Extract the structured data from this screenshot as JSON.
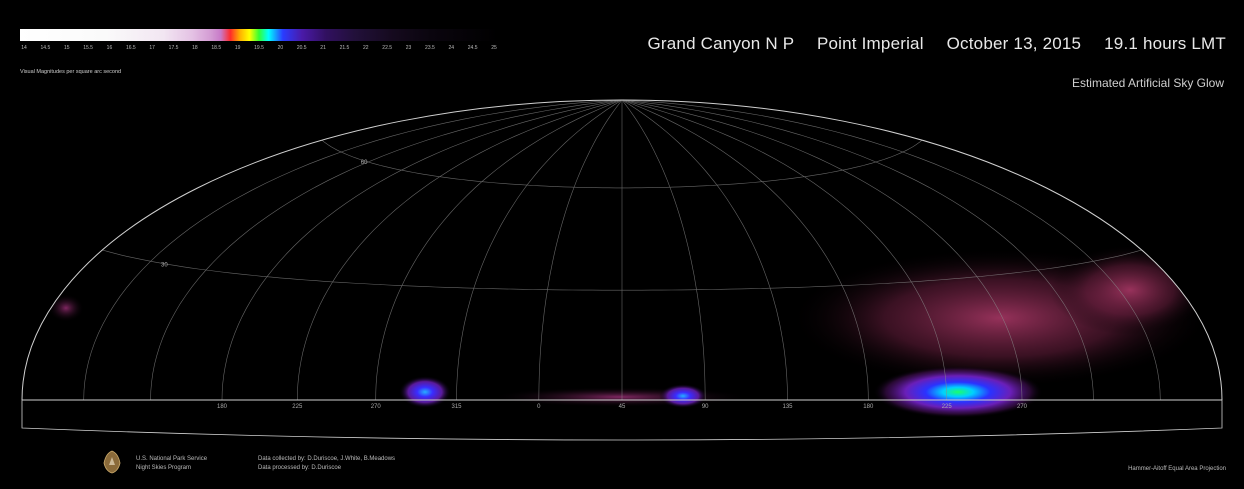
{
  "header": {
    "location": "Grand Canyon N P",
    "site": "Point Imperial",
    "date": "October 13, 2015",
    "time": "19.1 hours LMT",
    "subtitle": "Estimated Artificial Sky Glow"
  },
  "scale": {
    "ticks": [
      "14",
      "14.5",
      "15",
      "15.5",
      "16",
      "16.5",
      "17",
      "17.5",
      "18",
      "18.5",
      "19",
      "19.5",
      "20",
      "20.5",
      "21",
      "21.5",
      "22",
      "22.5",
      "23",
      "23.5",
      "24",
      "24.5",
      "25"
    ],
    "label": "Visual Magnitudes per square arc second"
  },
  "plot": {
    "altitude_labels": [
      "60",
      "30"
    ],
    "azimuth_labels": [
      "180",
      "225",
      "270",
      "315",
      "0",
      "45",
      "90",
      "135",
      "180",
      "225",
      "270"
    ],
    "colors": {
      "background": "#000000",
      "grid": "#8a8a8a",
      "border": "#cfcfcf"
    }
  },
  "footer": {
    "agency_line1": "U.S. National Park Service",
    "agency_line2": "Night Skies Program",
    "collected": "Data collected by:  D.Duriscoe, J.White, B.Meadows",
    "processed": "Data processed by:  D.Duriscoe",
    "projection": "Hammer-Aitoff Equal Area Projection",
    "logo_icon": "arrowhead-icon"
  }
}
